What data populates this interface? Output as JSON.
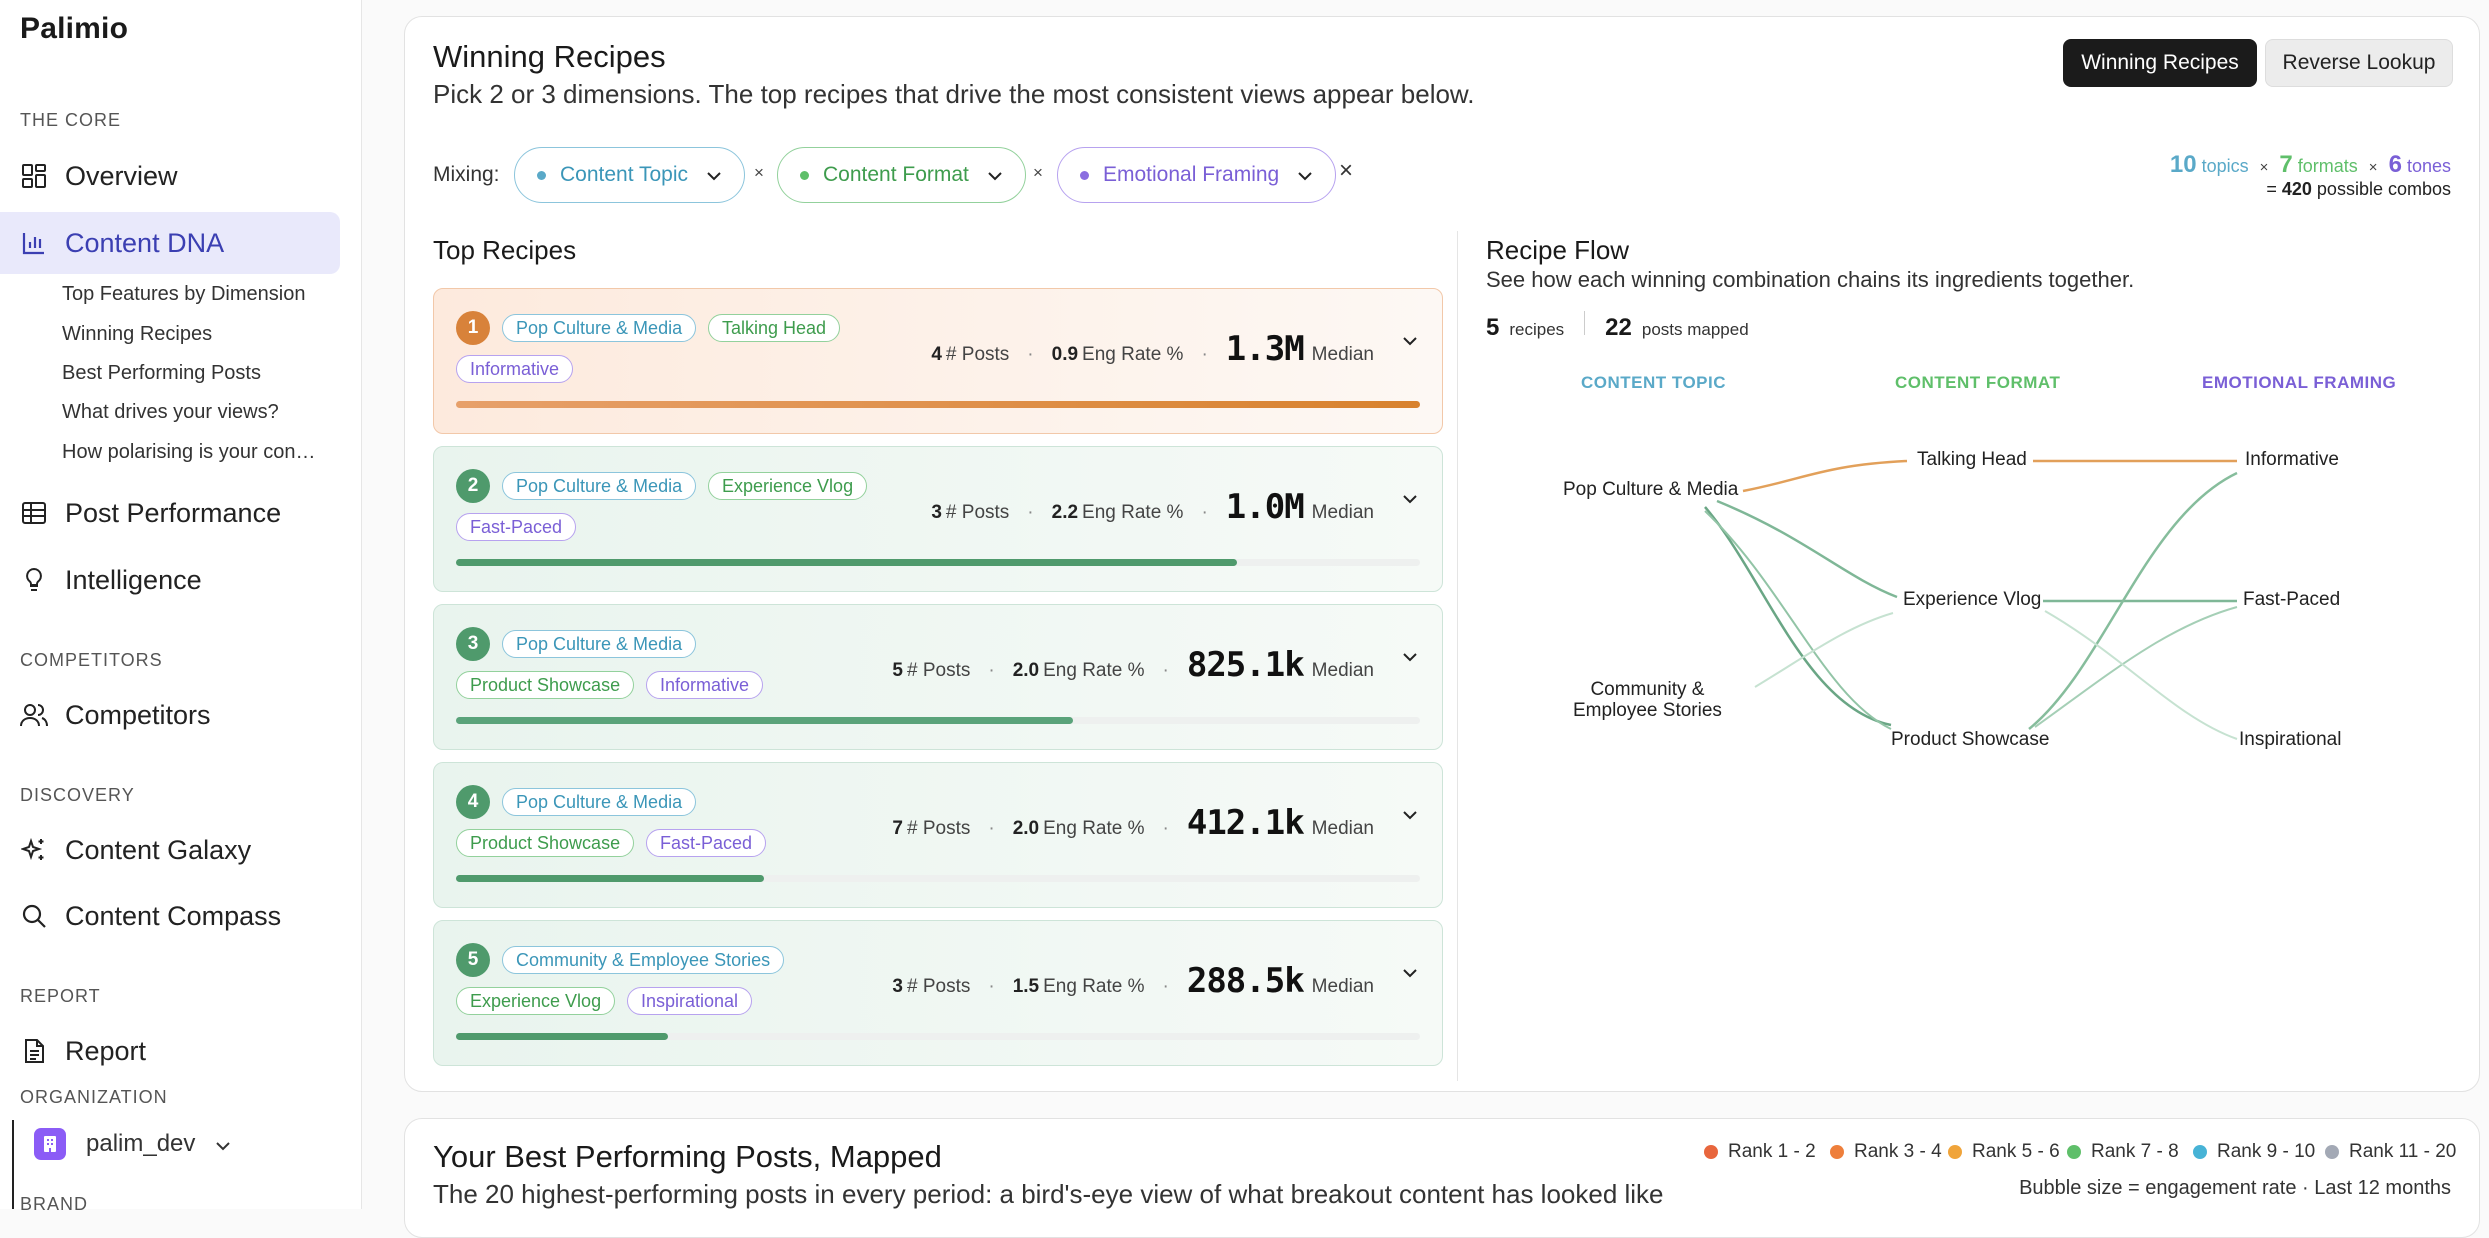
{
  "sidebar": {
    "logo": "Palimio",
    "sections": {
      "core": "THE CORE",
      "competitors": "COMPETITORS",
      "discovery": "DISCOVERY",
      "report": "REPORT",
      "organization": "ORGANIZATION",
      "brand": "BRAND"
    },
    "items": {
      "overview": "Overview",
      "content_dna": "Content DNA",
      "post_performance": "Post Performance",
      "intelligence": "Intelligence",
      "competitors": "Competitors",
      "content_galaxy": "Content Galaxy",
      "content_compass": "Content Compass",
      "report": "Report"
    },
    "subitems": [
      "Top Features by Dimension",
      "Winning Recipes",
      "Best Performing Posts",
      "What drives your views?",
      "How polarising is your content?"
    ],
    "org_name": "palim_dev"
  },
  "recipes": {
    "title": "Winning Recipes",
    "description": "Pick 2 or 3 dimensions. The top recipes that drive the most consistent views appear below.",
    "tabs": {
      "active": "Winning Recipes",
      "inactive": "Reverse Lookup"
    },
    "mixing_label": "Mixing:",
    "times": "×",
    "clear": "×",
    "dimensions": [
      "Content Topic",
      "Content Format",
      "Emotional Framing"
    ],
    "combo": {
      "topics_n": "10",
      "topics_l": "topics",
      "formats_n": "7",
      "formats_l": "formats",
      "tones_n": "6",
      "tones_l": "tones",
      "eq": "=",
      "total": "420",
      "total_l": "possible combos"
    },
    "top_title": "Top Recipes",
    "posts_label": "# Posts",
    "eng_label": "Eng Rate %",
    "median_label": "Median",
    "dot": "·",
    "list": [
      {
        "rank": "1",
        "topic": "Pop Culture & Media",
        "format": "Talking Head",
        "tone": "Informative",
        "posts": "4",
        "eng": "0.9",
        "median": "1.3M",
        "fill": 1.0
      },
      {
        "rank": "2",
        "topic": "Pop Culture & Media",
        "format": "Experience Vlog",
        "tone": "Fast-Paced",
        "posts": "3",
        "eng": "2.2",
        "median": "1.0M",
        "fill": 0.81
      },
      {
        "rank": "3",
        "topic": "Pop Culture & Media",
        "format": "Product Showcase",
        "tone": "Informative",
        "posts": "5",
        "eng": "2.0",
        "median": "825.1k",
        "fill": 0.64
      },
      {
        "rank": "4",
        "topic": "Pop Culture & Media",
        "format": "Product Showcase",
        "tone": "Fast-Paced",
        "posts": "7",
        "eng": "2.0",
        "median": "412.1k",
        "fill": 0.32
      },
      {
        "rank": "5",
        "topic": "Community & Employee Stories",
        "format": "Experience Vlog",
        "tone": "Inspirational",
        "posts": "3",
        "eng": "1.5",
        "median": "288.5k",
        "fill": 0.22
      }
    ],
    "flow": {
      "title": "Recipe Flow",
      "subtitle": "See how each winning combination chains its ingredients together.",
      "recipes_n": "5",
      "recipes_l": "recipes",
      "posts_n": "22",
      "posts_l": "posts mapped",
      "col_topic": "CONTENT TOPIC",
      "col_format": "CONTENT FORMAT",
      "col_tone": "EMOTIONAL FRAMING",
      "topics": [
        "Pop Culture & Media",
        "Community &",
        "Employee Stories"
      ],
      "formats": [
        "Talking Head",
        "Experience Vlog",
        "Product Showcase"
      ],
      "tones": [
        "Informative",
        "Fast-Paced",
        "Inspirational"
      ]
    }
  },
  "posts_map": {
    "title": "Your Best Performing Posts, Mapped",
    "description": "The 20 highest-performing posts in every period: a bird's-eye view of what breakout content has looked like",
    "legend": [
      "Rank 1 - 2",
      "Rank 3 - 4",
      "Rank 5 - 6",
      "Rank 7 - 8",
      "Rank 9 - 10",
      "Rank 11 - 20"
    ],
    "legend_colors": [
      "#e8663d",
      "#ee7f3c",
      "#f0a43a",
      "#5fbf6a",
      "#47b3d6",
      "#a3a9b5"
    ],
    "note": "Bubble size = engagement rate · Last 12 months"
  },
  "colors": {
    "accent": "#3b3fb2",
    "topic": "#3b96b8",
    "format": "#3e9c4d",
    "tone": "#7a5fd6",
    "orange": "#d98a3a",
    "green": "#5d9e72"
  }
}
